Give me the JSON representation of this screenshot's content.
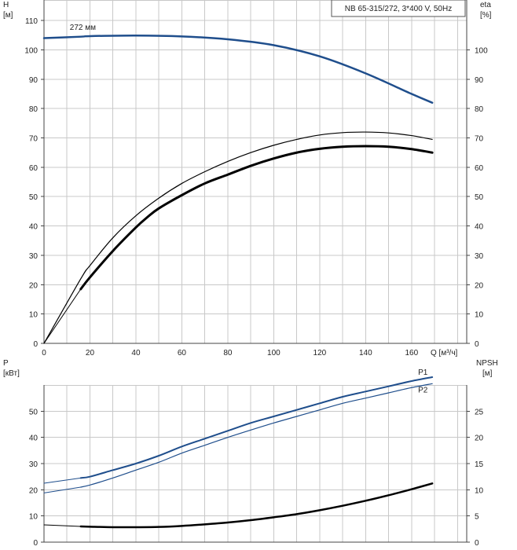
{
  "chart_data": [
    {
      "type": "line",
      "title": "NB 65-315/272, 3*400 V, 50Hz",
      "xlabel": "Q [м³/ч]",
      "ylabel": "H\n[м]",
      "y2label": "eta\n[%]",
      "xlim": [
        0,
        184
      ],
      "ylim": [
        0,
        117
      ],
      "x_ticks": [
        0,
        20,
        40,
        60,
        80,
        100,
        120,
        140,
        160
      ],
      "y_ticks": [
        0,
        10,
        20,
        30,
        40,
        50,
        60,
        70,
        80,
        90,
        100,
        110
      ],
      "y2_ticks": [
        0,
        10,
        20,
        30,
        40,
        50,
        60,
        70,
        80,
        90,
        100
      ],
      "grid": true,
      "annotations": [
        {
          "text": "272 мм",
          "x": 16,
          "y": 106.3
        }
      ],
      "series": [
        {
          "name": "",
          "axis": "left",
          "color": "#1f4e8c",
          "width": 2.5,
          "x": [
            0,
            16,
            20,
            40,
            60,
            80,
            100,
            120,
            140,
            160,
            169
          ],
          "y": [
            104,
            104.5,
            104.7,
            104.9,
            104.6,
            103.6,
            101.6,
            97.8,
            92,
            85,
            82
          ]
        },
        {
          "name": "",
          "axis": "left",
          "color": "#1f4e8c",
          "width": 1,
          "x": [
            0,
            16
          ],
          "y": [
            104,
            104.5
          ]
        },
        {
          "name": "",
          "axis": "right",
          "color": "#000000",
          "width": 1.2,
          "x": [
            0,
            16,
            20,
            30,
            40,
            50,
            60,
            70,
            80,
            90,
            100,
            110,
            120,
            130,
            140,
            150,
            160,
            169
          ],
          "y": [
            0,
            22,
            26.5,
            36,
            43.5,
            49.5,
            54.5,
            58.5,
            62,
            65,
            67.5,
            69.5,
            71,
            71.8,
            72,
            71.7,
            70.8,
            69.5
          ]
        },
        {
          "name": "",
          "axis": "right",
          "color": "#000000",
          "width": 3,
          "x": [
            16,
            20,
            30,
            40,
            45,
            50,
            60,
            70,
            80,
            90,
            100,
            110,
            120,
            130,
            140,
            150,
            160,
            169
          ],
          "y": [
            18.5,
            22.5,
            31.5,
            39.5,
            43,
            46,
            50.5,
            54.5,
            57.5,
            60.5,
            63,
            65,
            66.3,
            67,
            67.2,
            67,
            66.2,
            65
          ]
        },
        {
          "name": "",
          "axis": "right",
          "color": "#000000",
          "width": 1,
          "x": [
            0,
            16
          ],
          "y": [
            0,
            18.5
          ]
        }
      ]
    },
    {
      "type": "line",
      "xlabel": "",
      "ylabel": "P\n[кВт]",
      "y2label": "NPSH\n[м]",
      "xlim": [
        0,
        184
      ],
      "ylim": [
        0,
        60
      ],
      "y2lim": [
        0,
        30
      ],
      "x_ticks": [
        0,
        20,
        40,
        60,
        80,
        100,
        120,
        140,
        160
      ],
      "y_ticks": [
        0,
        10,
        20,
        30,
        40,
        50
      ],
      "y2_ticks": [
        0,
        5,
        10,
        15,
        20,
        25
      ],
      "grid": true,
      "series": [
        {
          "name": "P1",
          "axis": "left",
          "color": "#1f4e8c",
          "width": 2,
          "x": [
            16,
            20,
            30,
            40,
            50,
            60,
            70,
            80,
            90,
            100,
            110,
            120,
            130,
            140,
            150,
            160,
            169
          ],
          "y": [
            24.5,
            25,
            27.5,
            30,
            33,
            36.5,
            39.5,
            42.5,
            45.5,
            48,
            50.5,
            53,
            55.5,
            57.5,
            59.5,
            61.5,
            63
          ]
        },
        {
          "name": "",
          "axis": "left",
          "color": "#1f4e8c",
          "width": 1,
          "x": [
            0,
            16
          ],
          "y": [
            22.5,
            24.5
          ]
        },
        {
          "name": "P2",
          "axis": "left",
          "color": "#1f4e8c",
          "width": 1.2,
          "x": [
            16,
            20,
            30,
            40,
            50,
            60,
            70,
            80,
            90,
            100,
            110,
            120,
            130,
            140,
            150,
            160,
            169
          ],
          "y": [
            21,
            21.8,
            24.5,
            27.5,
            30.5,
            34,
            37,
            40,
            42.8,
            45.5,
            48,
            50.5,
            53,
            55,
            57,
            59,
            60.5
          ]
        },
        {
          "name": "",
          "axis": "left",
          "color": "#1f4e8c",
          "width": 1,
          "x": [
            0,
            16
          ],
          "y": [
            18.8,
            21
          ]
        },
        {
          "name": "",
          "axis": "right",
          "color": "#000000",
          "width": 2.5,
          "x": [
            16,
            20,
            30,
            40,
            50,
            60,
            70,
            80,
            90,
            100,
            110,
            120,
            130,
            140,
            150,
            160,
            169
          ],
          "y": [
            3,
            2.95,
            2.85,
            2.85,
            2.9,
            3.1,
            3.4,
            3.75,
            4.2,
            4.75,
            5.35,
            6.1,
            6.95,
            7.9,
            8.95,
            10.1,
            11.2
          ]
        },
        {
          "name": "",
          "axis": "right",
          "color": "#000000",
          "width": 1,
          "x": [
            0,
            16
          ],
          "y": [
            3.3,
            3
          ]
        }
      ]
    }
  ]
}
